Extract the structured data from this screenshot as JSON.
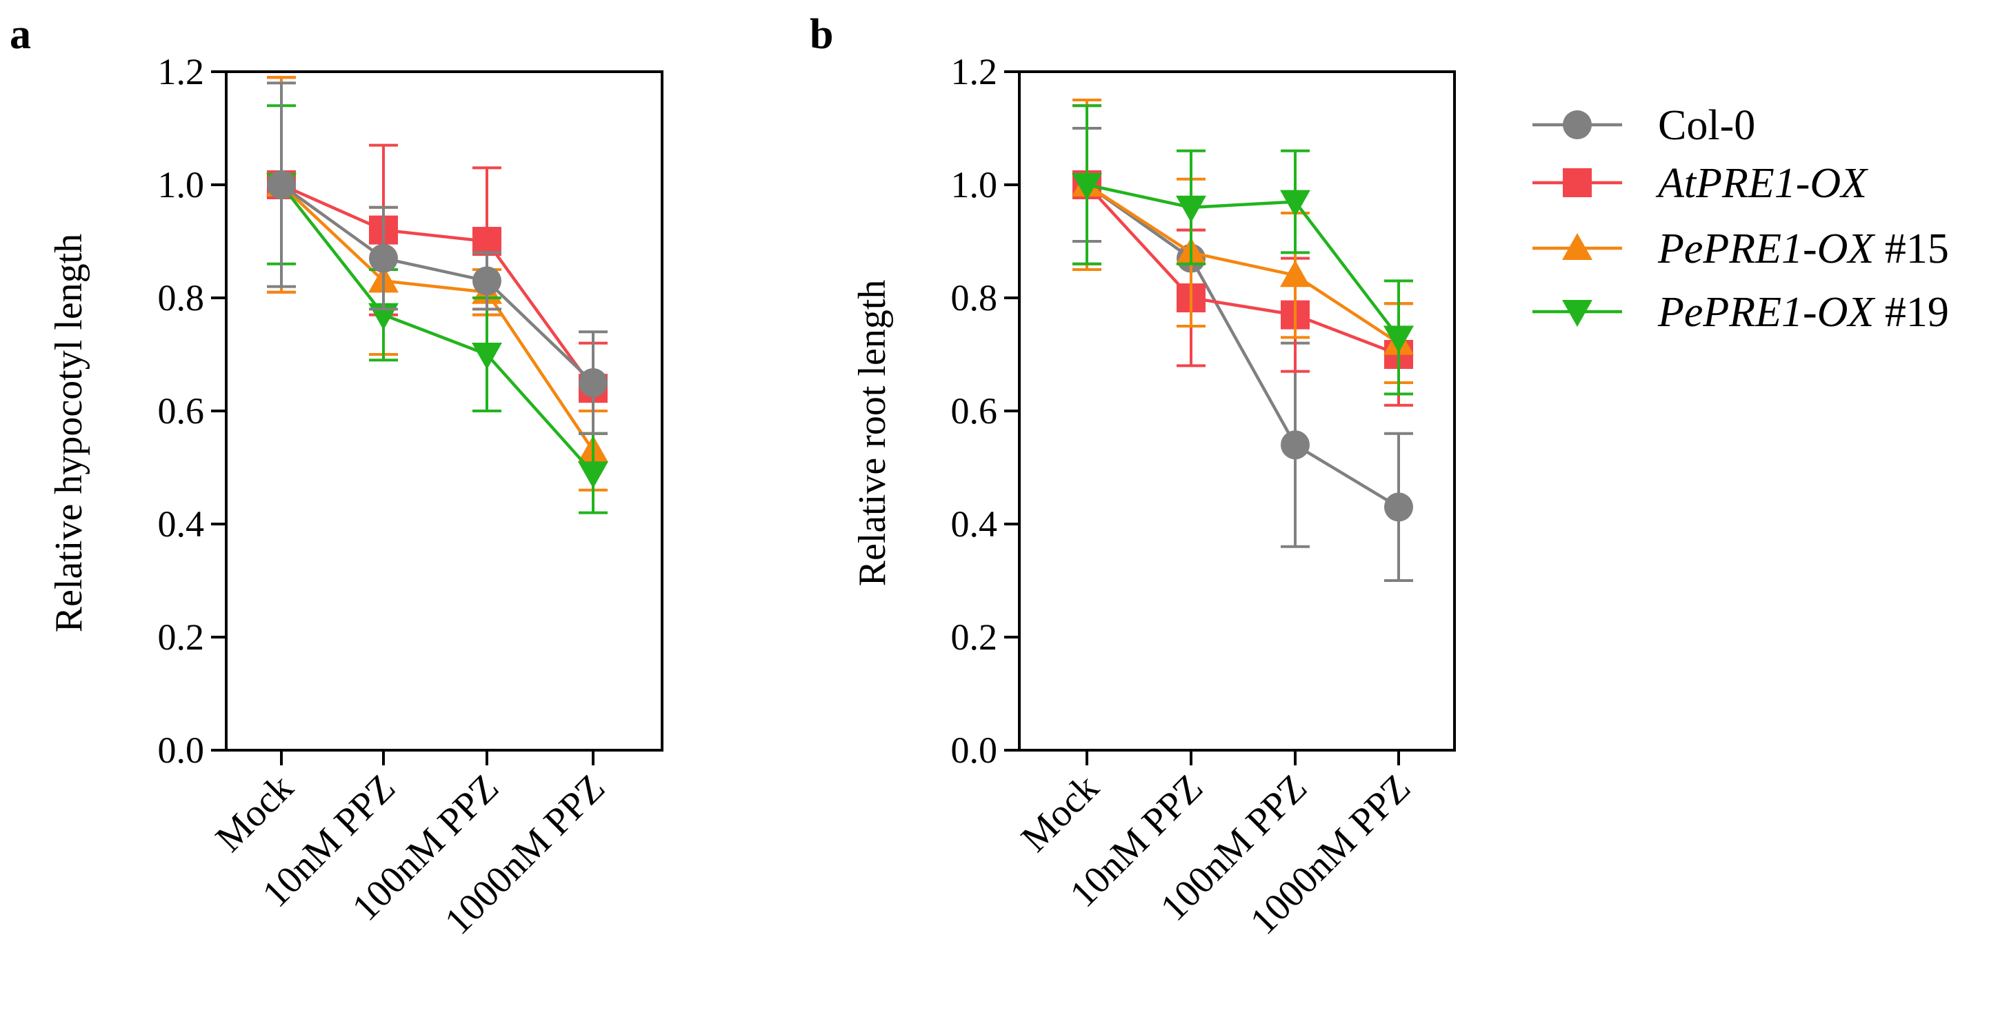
{
  "colors": {
    "Col-0": "#808080",
    "AtPRE1-OX": "#f2454b",
    "PePRE1-OX #15": "#f5860f",
    "PePRE1-OX #19": "#22b41d"
  },
  "legend": {
    "placement": "right",
    "entries": [
      {
        "name": "Col-0",
        "italic_part": "",
        "plain_part": "Col-0",
        "marker": "circle"
      },
      {
        "name": "AtPRE1-OX",
        "italic_part": "AtPRE1-OX",
        "plain_part": "",
        "marker": "square"
      },
      {
        "name": "PePRE1-OX #15",
        "italic_part": "PePRE1-OX",
        "plain_part": " #15",
        "marker": "triangle-up"
      },
      {
        "name": "PePRE1-OX #19",
        "italic_part": "PePRE1-OX",
        "plain_part": " #19",
        "marker": "triangle-down"
      }
    ]
  },
  "chart_data": [
    {
      "panel": "a",
      "type": "line",
      "title": "",
      "xlabel": "",
      "ylabel": "Relative hypocotyl length",
      "categories": [
        "Mock",
        "10nM PPZ",
        "100nM PPZ",
        "1000nM PPZ"
      ],
      "ylim": [
        0.0,
        1.2
      ],
      "yticks": [
        "0.0",
        "0.2",
        "0.4",
        "0.6",
        "0.8",
        "1.0",
        "1.2"
      ],
      "grid": false,
      "series": [
        {
          "name": "AtPRE1-OX",
          "marker": "square",
          "values": [
            1.0,
            0.92,
            0.9,
            0.64
          ],
          "err": [
            0.19,
            0.15,
            0.13,
            0.08
          ]
        },
        {
          "name": "PePRE1-OX #15",
          "marker": "triangle-up",
          "values": [
            1.0,
            0.83,
            0.81,
            0.53
          ],
          "err": [
            0.19,
            0.13,
            0.04,
            0.07
          ]
        },
        {
          "name": "PePRE1-OX #19",
          "marker": "triangle-down",
          "values": [
            1.0,
            0.77,
            0.7,
            0.49
          ],
          "err": [
            0.14,
            0.08,
            0.1,
            0.07
          ]
        },
        {
          "name": "Col-0",
          "marker": "circle",
          "values": [
            1.0,
            0.87,
            0.83,
            0.65
          ],
          "err": [
            0.18,
            0.09,
            0.05,
            0.09
          ]
        }
      ]
    },
    {
      "panel": "b",
      "type": "line",
      "title": "",
      "xlabel": "",
      "ylabel": "Relative root length",
      "categories": [
        "Mock",
        "10nM PPZ",
        "100nM PPZ",
        "1000nM PPZ"
      ],
      "ylim": [
        0.0,
        1.2
      ],
      "yticks": [
        "0.0",
        "0.2",
        "0.4",
        "0.6",
        "0.8",
        "1.0",
        "1.2"
      ],
      "grid": false,
      "series": [
        {
          "name": "Col-0",
          "marker": "circle",
          "values": [
            1.0,
            0.87,
            0.54,
            0.43
          ],
          "err": [
            0.1,
            0.05,
            0.18,
            0.13
          ]
        },
        {
          "name": "AtPRE1-OX",
          "marker": "square",
          "values": [
            1.0,
            0.8,
            0.77,
            0.7
          ],
          "err": [
            0.14,
            0.12,
            0.1,
            0.09
          ]
        },
        {
          "name": "PePRE1-OX #15",
          "marker": "triangle-up",
          "values": [
            1.0,
            0.88,
            0.84,
            0.72
          ],
          "err": [
            0.15,
            0.13,
            0.11,
            0.07
          ]
        },
        {
          "name": "PePRE1-OX #19",
          "marker": "triangle-down",
          "values": [
            1.0,
            0.96,
            0.97,
            0.73
          ],
          "err": [
            0.14,
            0.1,
            0.09,
            0.1
          ]
        }
      ]
    }
  ]
}
